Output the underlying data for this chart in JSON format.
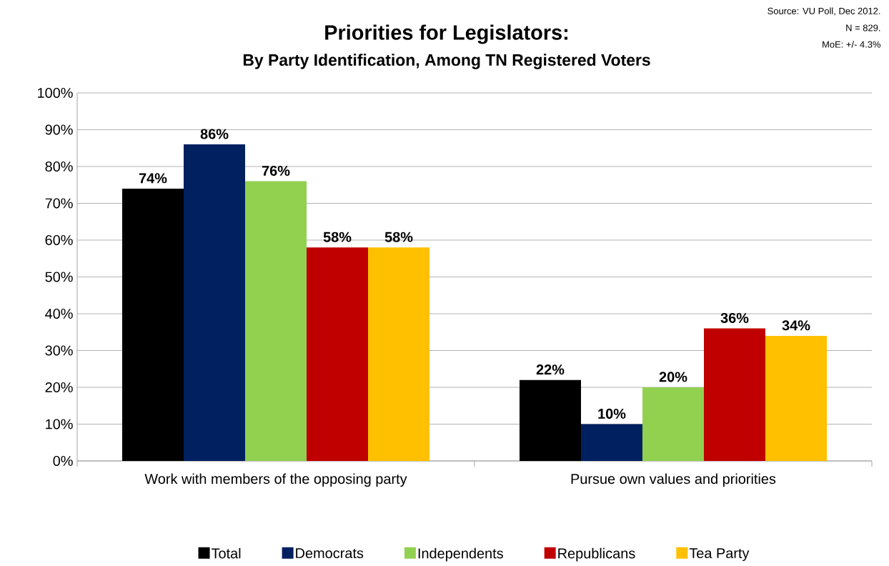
{
  "chart_data": {
    "type": "bar",
    "title": "Priorities for Legislators:",
    "subtitle": "By Party Identification, Among TN Registered Voters",
    "annotations": [
      "Source: VU Poll, Dec 2012.",
      "N = 829.",
      "MoE: +/- 4.3%"
    ],
    "categories": [
      "Work with members of the opposing party",
      "Pursue own values and priorities"
    ],
    "series": [
      {
        "name": "Total",
        "color": "#000000",
        "values": [
          74,
          22
        ],
        "value_labels": [
          "74%",
          "22%"
        ]
      },
      {
        "name": "Democrats",
        "color": "#002060",
        "values": [
          86,
          10
        ],
        "value_labels": [
          "86%",
          "10%"
        ]
      },
      {
        "name": "Independents",
        "color": "#92d050",
        "values": [
          76,
          20
        ],
        "value_labels": [
          "76%",
          "20%"
        ]
      },
      {
        "name": "Republicans",
        "color": "#c00000",
        "values": [
          58,
          36
        ],
        "value_labels": [
          "58%",
          "36%"
        ]
      },
      {
        "name": "Tea Party",
        "color": "#ffc000",
        "values": [
          58,
          34
        ],
        "value_labels": [
          "58%",
          "34%"
        ]
      }
    ],
    "ylim": [
      0,
      100
    ],
    "yticks": [
      {
        "value": 0,
        "label": "0%"
      },
      {
        "value": 10,
        "label": "10%"
      },
      {
        "value": 20,
        "label": "20%"
      },
      {
        "value": 30,
        "label": "30%"
      },
      {
        "value": 40,
        "label": "40%"
      },
      {
        "value": 50,
        "label": "50%"
      },
      {
        "value": 60,
        "label": "60%"
      },
      {
        "value": 70,
        "label": "70%"
      },
      {
        "value": 80,
        "label": "80%"
      },
      {
        "value": 90,
        "label": "90%"
      },
      {
        "value": 100,
        "label": "100%"
      }
    ],
    "grid": "y",
    "legend": "bottom"
  }
}
